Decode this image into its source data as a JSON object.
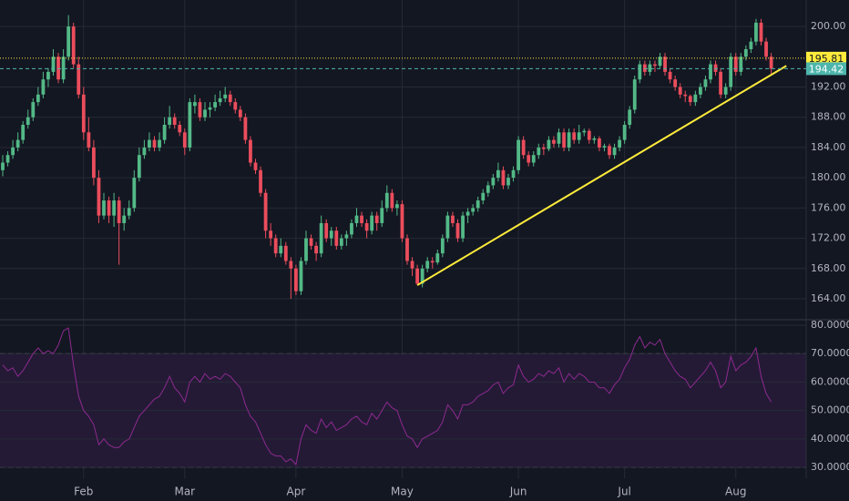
{
  "chart_data": [
    {
      "type": "candlestick",
      "categories": [
        null,
        null,
        null,
        null,
        null,
        null,
        null,
        null,
        null,
        null,
        null,
        null,
        null,
        null,
        null,
        null,
        "Feb",
        null,
        null,
        null,
        null,
        null,
        null,
        null,
        null,
        null,
        null,
        null,
        null,
        null,
        null,
        null,
        null,
        null,
        null,
        null,
        "Mar",
        null,
        null,
        null,
        null,
        null,
        null,
        null,
        null,
        null,
        null,
        null,
        null,
        null,
        null,
        null,
        null,
        null,
        null,
        null,
        null,
        null,
        "Apr",
        null,
        null,
        null,
        null,
        null,
        null,
        null,
        null,
        null,
        null,
        null,
        null,
        null,
        null,
        null,
        null,
        null,
        null,
        null,
        null,
        "May",
        null,
        null,
        null,
        null,
        null,
        null,
        null,
        null,
        null,
        null,
        null,
        null,
        null,
        null,
        null,
        null,
        null,
        null,
        null,
        null,
        null,
        null,
        "Jun",
        null,
        null,
        null,
        null,
        null,
        null,
        null,
        null,
        null,
        null,
        null,
        null,
        null,
        null,
        null,
        null,
        null,
        null,
        null,
        null,
        "Jul",
        null,
        null,
        null,
        null,
        null,
        null,
        null,
        null,
        null,
        null,
        null,
        null,
        null,
        null,
        null,
        null,
        null,
        null,
        null,
        null,
        null,
        "Aug",
        null,
        null,
        null,
        null,
        null,
        null,
        null
      ],
      "ohlc": [
        [
          181,
          183,
          180.2,
          182
        ],
        [
          182,
          183.5,
          181.5,
          183
        ],
        [
          183,
          185,
          182.5,
          184
        ],
        [
          184,
          186,
          183.5,
          185
        ],
        [
          185,
          187.5,
          184.5,
          187
        ],
        [
          187,
          189,
          186.5,
          188
        ],
        [
          188,
          190.5,
          187.5,
          190
        ],
        [
          190,
          192,
          189.5,
          191
        ],
        [
          191,
          194,
          190.5,
          193
        ],
        [
          193,
          194.5,
          192,
          194
        ],
        [
          194,
          197,
          193.5,
          196
        ],
        [
          196,
          196.5,
          192.5,
          193
        ],
        [
          193,
          197,
          192.5,
          196
        ],
        [
          196,
          201.5,
          195.5,
          200
        ],
        [
          200,
          200.5,
          194.5,
          195
        ],
        [
          195,
          196,
          190.5,
          191
        ],
        [
          191,
          192,
          185,
          186
        ],
        [
          186,
          188,
          183.5,
          184
        ],
        [
          184,
          185,
          179,
          180
        ],
        [
          180,
          181,
          174,
          175
        ],
        [
          175,
          178,
          174.5,
          177
        ],
        [
          177,
          177.5,
          174,
          175
        ],
        [
          175,
          178,
          173.5,
          177
        ],
        [
          177,
          177.5,
          168.5,
          174
        ],
        [
          174,
          176,
          173,
          175
        ],
        [
          175,
          177,
          174.5,
          176
        ],
        [
          176,
          181,
          175.5,
          180
        ],
        [
          180,
          184,
          179.5,
          183
        ],
        [
          183,
          185,
          182.5,
          184
        ],
        [
          184,
          186,
          183.5,
          185
        ],
        [
          185,
          185.5,
          183.5,
          184
        ],
        [
          184,
          186,
          183.5,
          185
        ],
        [
          185,
          188,
          184.5,
          187
        ],
        [
          187,
          189.5,
          186.5,
          188
        ],
        [
          188,
          188.5,
          186.5,
          187
        ],
        [
          187,
          187.5,
          185.5,
          186
        ],
        [
          186,
          186.5,
          183,
          184
        ],
        [
          184,
          190.5,
          183.5,
          190
        ],
        [
          189.5,
          191,
          188.5,
          190
        ],
        [
          190,
          190.5,
          187.5,
          188
        ],
        [
          188,
          190,
          187.5,
          189
        ],
        [
          189,
          190,
          188,
          189.3
        ],
        [
          189.3,
          191,
          188.8,
          190
        ],
        [
          190,
          191.5,
          189.5,
          190.5
        ],
        [
          190.5,
          192,
          190,
          191
        ],
        [
          191,
          191.5,
          189.5,
          190
        ],
        [
          190,
          190.5,
          188.5,
          189
        ],
        [
          189,
          189.5,
          187.5,
          188
        ],
        [
          188,
          188.5,
          184.5,
          185
        ],
        [
          185,
          185.5,
          181.5,
          182
        ],
        [
          182,
          182.5,
          180.5,
          181
        ],
        [
          181,
          181.5,
          177.5,
          178
        ],
        [
          178,
          178.5,
          172,
          173
        ],
        [
          173,
          174,
          171,
          172
        ],
        [
          172,
          172.5,
          169.5,
          170
        ],
        [
          170,
          172,
          169.5,
          171
        ],
        [
          171,
          171.5,
          168.5,
          169
        ],
        [
          169,
          169.5,
          164,
          168
        ],
        [
          168,
          168.5,
          164.5,
          165
        ],
        [
          165,
          169.5,
          164.5,
          169
        ],
        [
          169,
          173,
          168.5,
          172
        ],
        [
          172,
          172.5,
          170.5,
          171
        ],
        [
          171,
          171.5,
          169,
          170
        ],
        [
          170,
          175,
          169.5,
          174
        ],
        [
          174,
          174.5,
          171.5,
          172
        ],
        [
          172,
          173.5,
          171,
          173
        ],
        [
          173,
          173.5,
          170.5,
          171
        ],
        [
          171,
          172.5,
          170.5,
          172
        ],
        [
          172,
          173,
          171,
          172.5
        ],
        [
          172.5,
          174.5,
          172,
          174
        ],
        [
          174,
          176,
          173.5,
          175
        ],
        [
          175,
          175.5,
          173.5,
          174
        ],
        [
          174,
          174.5,
          172,
          173
        ],
        [
          173,
          175.5,
          172.5,
          175
        ],
        [
          175,
          175.5,
          173,
          174
        ],
        [
          174,
          177,
          173.5,
          176
        ],
        [
          176,
          179,
          175.5,
          178
        ],
        [
          178,
          178.5,
          175.5,
          176
        ],
        [
          176,
          177,
          175,
          176.5
        ],
        [
          176.5,
          177,
          171.5,
          172
        ],
        [
          172,
          172.5,
          168.5,
          169
        ],
        [
          169,
          169.5,
          167,
          168
        ],
        [
          168,
          168.5,
          165.8,
          166
        ],
        [
          166,
          168.5,
          165.5,
          168
        ],
        [
          168,
          169.5,
          167.5,
          169
        ],
        [
          169,
          169.5,
          168,
          168.8
        ],
        [
          168.8,
          170.5,
          168.5,
          170
        ],
        [
          170,
          172.5,
          169.5,
          172
        ],
        [
          172,
          175.5,
          171.5,
          175
        ],
        [
          175,
          175.5,
          173.5,
          174
        ],
        [
          174,
          174.5,
          171.5,
          172
        ],
        [
          172,
          175.5,
          171.5,
          175
        ],
        [
          175,
          176,
          174,
          175.5
        ],
        [
          175.5,
          176.5,
          175,
          176
        ],
        [
          176,
          177.5,
          175.5,
          177
        ],
        [
          177,
          178.5,
          176.5,
          178
        ],
        [
          178,
          179.5,
          177.5,
          179
        ],
        [
          179,
          180.5,
          178.5,
          180
        ],
        [
          180,
          182,
          179.5,
          181
        ],
        [
          181,
          181.5,
          178.5,
          179
        ],
        [
          179,
          180.5,
          178.5,
          180
        ],
        [
          180,
          181.5,
          179.5,
          181
        ],
        [
          181,
          185.5,
          180.5,
          185
        ],
        [
          185,
          185.5,
          182.5,
          183
        ],
        [
          183,
          183.5,
          181.5,
          182
        ],
        [
          182,
          183.5,
          181.5,
          183
        ],
        [
          183,
          184.5,
          182.5,
          184
        ],
        [
          184,
          184.5,
          183,
          183.8
        ],
        [
          183.8,
          185.5,
          183.5,
          185
        ],
        [
          185,
          185.5,
          184,
          184.5
        ],
        [
          184.5,
          186.5,
          184,
          186
        ],
        [
          186,
          186.5,
          183.5,
          184
        ],
        [
          184,
          186.5,
          183.5,
          186
        ],
        [
          186,
          186.5,
          184.5,
          185
        ],
        [
          185,
          187,
          184.5,
          186
        ],
        [
          186,
          186.5,
          185.5,
          186.2
        ],
        [
          186.2,
          186.5,
          184.5,
          185
        ],
        [
          185,
          185.5,
          184.5,
          185.2
        ],
        [
          185.2,
          185.5,
          183.5,
          184
        ],
        [
          184,
          184.5,
          183.5,
          184.2
        ],
        [
          184.2,
          184.5,
          182.5,
          183
        ],
        [
          183,
          184.5,
          182.5,
          184
        ],
        [
          184,
          185.5,
          183.5,
          185
        ],
        [
          185,
          187.5,
          184.5,
          187
        ],
        [
          187,
          189.5,
          186.5,
          189
        ],
        [
          189,
          193.5,
          188.5,
          193
        ],
        [
          193,
          195.5,
          192.5,
          195
        ],
        [
          195,
          195.5,
          193.5,
          194
        ],
        [
          194,
          195.5,
          193.5,
          195
        ],
        [
          195,
          195.5,
          194,
          194.8
        ],
        [
          194.8,
          196.5,
          194.5,
          196
        ],
        [
          196,
          196.5,
          193.5,
          194
        ],
        [
          194,
          194.5,
          192.5,
          193
        ],
        [
          193,
          193.5,
          191.5,
          192
        ],
        [
          192,
          192.5,
          190.5,
          191
        ],
        [
          191,
          191.5,
          190,
          190.8
        ],
        [
          190.8,
          191,
          189.5,
          190
        ],
        [
          190,
          191.5,
          189.5,
          191
        ],
        [
          191,
          192.5,
          190.5,
          192
        ],
        [
          192,
          193.5,
          191.5,
          193
        ],
        [
          193,
          195.5,
          192.5,
          195
        ],
        [
          195,
          195.5,
          193.5,
          194
        ],
        [
          194,
          194.5,
          190.5,
          191
        ],
        [
          191,
          192.5,
          190.5,
          192
        ],
        [
          192,
          196.5,
          191.5,
          196
        ],
        [
          196,
          196.5,
          193.5,
          194
        ],
        [
          194,
          196.5,
          193.5,
          196
        ],
        [
          196,
          197.5,
          195.5,
          197
        ],
        [
          197,
          198.5,
          196.5,
          198
        ],
        [
          198,
          201,
          197.5,
          200.5
        ],
        [
          200.5,
          201,
          197.5,
          198
        ],
        [
          198,
          198.5,
          195.5,
          196
        ],
        [
          196,
          196.5,
          193.5,
          194.42
        ]
      ],
      "up_color": "#53b987",
      "down_color": "#eb4d5c",
      "ylim": [
        161.35,
        203.5
      ],
      "yticks": [
        {
          "value": 200,
          "label": "200.00"
        },
        {
          "value": 192,
          "label": "192.00"
        },
        {
          "value": 188,
          "label": "188.00"
        },
        {
          "value": 184,
          "label": "184.00"
        },
        {
          "value": 180,
          "label": "180.00"
        },
        {
          "value": 176,
          "label": "176.00"
        },
        {
          "value": 172,
          "label": "172.00"
        },
        {
          "value": 168,
          "label": "168.00"
        },
        {
          "value": 164,
          "label": "164.00"
        }
      ],
      "grid": true,
      "price_lines": [
        {
          "value": 195.81,
          "color": "#ffeb3b",
          "text_color": "#131722"
        },
        {
          "value": 194.42,
          "color": "#4db6ac",
          "text_color": "#ffffff"
        }
      ],
      "trendline": {
        "x": [
          82,
          155
        ],
        "y": [
          165.8,
          194.8
        ],
        "color": "#ffeb3b"
      }
    },
    {
      "type": "line",
      "values": [
        66,
        64,
        65,
        62,
        64,
        67,
        70,
        72,
        70,
        71,
        70,
        73,
        78,
        79,
        66,
        55,
        50,
        48,
        45,
        38,
        40,
        38,
        37,
        37,
        39,
        40,
        44,
        48,
        50,
        52,
        54,
        55,
        58,
        62,
        58,
        56,
        53,
        60,
        62,
        60,
        63,
        61,
        62,
        61,
        63,
        62,
        60,
        58,
        52,
        48,
        46,
        42,
        38,
        35,
        34,
        34,
        32,
        33,
        31,
        40,
        45,
        43,
        42,
        47,
        44,
        46,
        43,
        44,
        45,
        47,
        48,
        46,
        45,
        49,
        47,
        50,
        53,
        51,
        50,
        45,
        41,
        40,
        37,
        40,
        41,
        42,
        43,
        46,
        52,
        50,
        47,
        52,
        52,
        53,
        55,
        56,
        57,
        59,
        60,
        56,
        58,
        59,
        66,
        62,
        60,
        61,
        63,
        62,
        64,
        63,
        65,
        60,
        63,
        61,
        63,
        62,
        60,
        60,
        58,
        58,
        56,
        59,
        61,
        65,
        68,
        73,
        76,
        72,
        74,
        73,
        75,
        70,
        67,
        64,
        62,
        61,
        58,
        60,
        62,
        64,
        67,
        64,
        58,
        60,
        69,
        64,
        66,
        67,
        69,
        72,
        62,
        56,
        53
      ],
      "color": "#8e2a8e",
      "ylim": [
        26.2,
        81.6
      ],
      "yticks": [
        {
          "value": 80,
          "label": "80.0000"
        },
        {
          "value": 70,
          "label": "70.0000"
        },
        {
          "value": 60,
          "label": "60.0000"
        },
        {
          "value": 50,
          "label": "50.0000"
        },
        {
          "value": 40,
          "label": "40.0000"
        },
        {
          "value": 30,
          "label": "30.0000"
        }
      ],
      "bands": [
        30,
        70
      ],
      "band_color": "#241a36",
      "grid": true
    }
  ]
}
